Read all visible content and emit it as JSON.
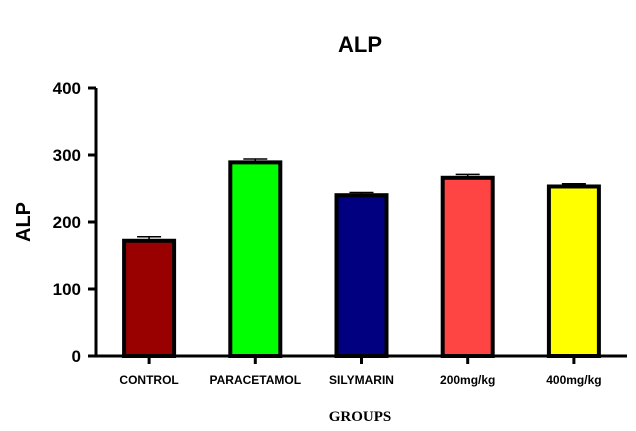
{
  "chart_data": {
    "type": "bar",
    "title": "ALP",
    "xlabel": "GROUPS",
    "ylabel": "ALP",
    "ylim": [
      0,
      400
    ],
    "yticks": [
      0,
      100,
      200,
      300,
      400
    ],
    "categories": [
      "CONTROL",
      "PARACETAMOL",
      "SILYMARIN",
      "200mg/kg",
      "400mg/kg"
    ],
    "values": [
      172,
      289,
      240,
      266,
      253
    ],
    "errors": [
      6,
      5,
      4,
      5,
      4
    ],
    "colors": [
      "#990000",
      "#00FF00",
      "#000080",
      "#FF4444",
      "#FFFF00"
    ],
    "grid": false,
    "legend": "none"
  }
}
